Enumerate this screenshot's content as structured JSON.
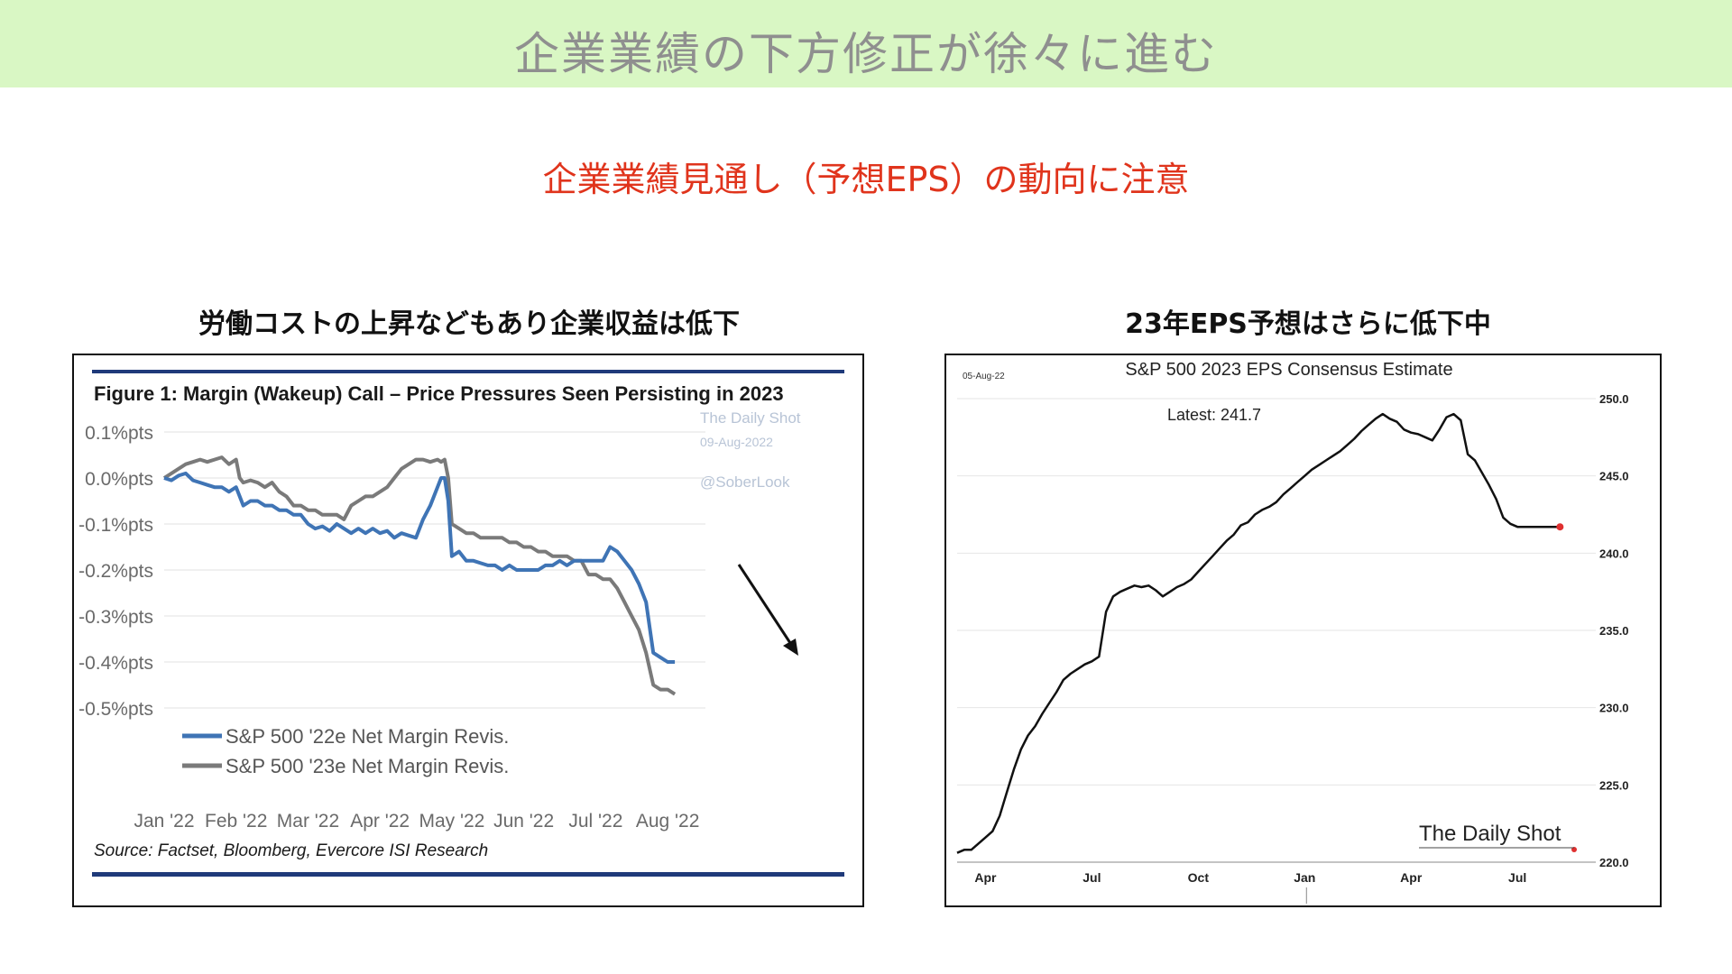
{
  "banner": {
    "title": "企業業績の下方修正が徐々に進む"
  },
  "subtitle": "企業業績見通し（予想EPS）の動向に注意",
  "left_panel": {
    "heading": "労働コストの上昇などもあり企業収益は低下"
  },
  "right_panel": {
    "heading": "23年EPS予想はさらに低下中"
  },
  "colors": {
    "banner_bg": "#d9f7c4",
    "subtitle": "#e0341c",
    "blue_series": "#3f74b5",
    "grey_series": "#7a7a7a",
    "navy_rule": "#1f3a7a",
    "latest_dot": "#e03030"
  },
  "chart_data": [
    {
      "type": "line",
      "title": "Figure 1: Margin (Wakeup) Call – Price Pressures Seen Persisting in 2023",
      "watermark": [
        "The Daily Shot",
        "09-Aug-2022",
        "@SoberLook"
      ],
      "source": "Source: Factset, Bloomberg, Evercore ISI Research",
      "ylim": [
        -0.5,
        0.1
      ],
      "yticks": [
        0.1,
        0.0,
        -0.1,
        -0.2,
        -0.3,
        -0.4,
        -0.5
      ],
      "ytick_labels": [
        "0.1%pts",
        "0.0%pts",
        "-0.1%pts",
        "-0.2%pts",
        "-0.3%pts",
        "-0.4%pts",
        "-0.5%pts"
      ],
      "xtick_labels": [
        "Jan '22",
        "Feb '22",
        "Mar '22",
        "Apr '22",
        "May '22",
        "Jun '22",
        "Jul '22",
        "Aug '22"
      ],
      "xlim": [
        0,
        7.4
      ],
      "series": [
        {
          "name": "S&P 500 '22e Net Margin Revis.",
          "x": [
            0,
            0.1,
            0.2,
            0.3,
            0.4,
            0.5,
            0.6,
            0.7,
            0.8,
            0.9,
            1.0,
            1.05,
            1.1,
            1.2,
            1.3,
            1.4,
            1.5,
            1.6,
            1.7,
            1.8,
            1.9,
            2.0,
            2.1,
            2.2,
            2.3,
            2.4,
            2.5,
            2.6,
            2.7,
            2.8,
            2.9,
            3.0,
            3.1,
            3.2,
            3.3,
            3.4,
            3.5,
            3.6,
            3.7,
            3.8,
            3.85,
            3.9,
            3.95,
            4.0,
            4.1,
            4.2,
            4.3,
            4.4,
            4.5,
            4.6,
            4.7,
            4.8,
            4.9,
            5.0,
            5.1,
            5.2,
            5.3,
            5.4,
            5.5,
            5.6,
            5.7,
            5.8,
            5.9,
            6.0,
            6.1,
            6.2,
            6.3,
            6.4,
            6.5,
            6.6,
            6.7,
            6.8,
            6.9,
            7.0,
            7.1
          ],
          "y": [
            0.0,
            -0.005,
            0.005,
            0.01,
            -0.005,
            -0.01,
            -0.015,
            -0.02,
            -0.02,
            -0.03,
            -0.02,
            -0.04,
            -0.06,
            -0.05,
            -0.05,
            -0.06,
            -0.06,
            -0.07,
            -0.07,
            -0.08,
            -0.08,
            -0.1,
            -0.11,
            -0.105,
            -0.115,
            -0.1,
            -0.11,
            -0.12,
            -0.11,
            -0.12,
            -0.11,
            -0.12,
            -0.115,
            -0.13,
            -0.12,
            -0.125,
            -0.13,
            -0.09,
            -0.06,
            -0.02,
            0.0,
            0.0,
            -0.05,
            -0.17,
            -0.16,
            -0.18,
            -0.18,
            -0.185,
            -0.19,
            -0.19,
            -0.2,
            -0.19,
            -0.2,
            -0.2,
            -0.2,
            -0.2,
            -0.19,
            -0.19,
            -0.18,
            -0.19,
            -0.18,
            -0.18,
            -0.18,
            -0.18,
            -0.18,
            -0.15,
            -0.16,
            -0.18,
            -0.2,
            -0.23,
            -0.27,
            -0.38,
            -0.39,
            -0.4,
            -0.4
          ]
        },
        {
          "name": "S&P 500 '23e Net Margin Revis.",
          "x": [
            0,
            0.1,
            0.2,
            0.3,
            0.4,
            0.5,
            0.6,
            0.7,
            0.8,
            0.9,
            1.0,
            1.05,
            1.1,
            1.2,
            1.3,
            1.4,
            1.5,
            1.6,
            1.7,
            1.8,
            1.9,
            2.0,
            2.1,
            2.2,
            2.3,
            2.4,
            2.5,
            2.6,
            2.7,
            2.8,
            2.9,
            3.0,
            3.1,
            3.2,
            3.3,
            3.4,
            3.5,
            3.6,
            3.7,
            3.8,
            3.85,
            3.9,
            3.95,
            4.0,
            4.1,
            4.2,
            4.3,
            4.4,
            4.5,
            4.6,
            4.7,
            4.8,
            4.9,
            5.0,
            5.1,
            5.2,
            5.3,
            5.4,
            5.5,
            5.6,
            5.7,
            5.8,
            5.9,
            6.0,
            6.1,
            6.2,
            6.3,
            6.4,
            6.5,
            6.6,
            6.7,
            6.8,
            6.9,
            7.0,
            7.1
          ],
          "y": [
            0.0,
            0.01,
            0.02,
            0.03,
            0.035,
            0.04,
            0.035,
            0.04,
            0.045,
            0.03,
            0.04,
            0.0,
            -0.01,
            -0.005,
            -0.01,
            -0.02,
            -0.01,
            -0.03,
            -0.04,
            -0.06,
            -0.06,
            -0.07,
            -0.07,
            -0.08,
            -0.08,
            -0.08,
            -0.09,
            -0.06,
            -0.05,
            -0.04,
            -0.04,
            -0.03,
            -0.02,
            0.0,
            0.02,
            0.03,
            0.04,
            0.04,
            0.035,
            0.04,
            0.035,
            0.04,
            0.0,
            -0.1,
            -0.11,
            -0.12,
            -0.12,
            -0.13,
            -0.13,
            -0.13,
            -0.13,
            -0.14,
            -0.14,
            -0.15,
            -0.15,
            -0.16,
            -0.16,
            -0.17,
            -0.17,
            -0.17,
            -0.18,
            -0.18,
            -0.21,
            -0.21,
            -0.22,
            -0.22,
            -0.24,
            -0.27,
            -0.3,
            -0.33,
            -0.38,
            -0.45,
            -0.46,
            -0.46,
            -0.47
          ]
        }
      ],
      "legend_position": "bottom-left",
      "annotation": "downward-arrow"
    },
    {
      "type": "line",
      "title": "S&P 500 2023 EPS Consensus Estimate",
      "date_label": "05-Aug-22",
      "latest_label": "Latest:  241.7",
      "brand": "The Daily Shot",
      "ylim": [
        220,
        250
      ],
      "yticks": [
        250,
        245,
        240,
        235,
        230,
        225,
        220
      ],
      "ytick_labels": [
        "250.0",
        "245.0",
        "240.0",
        "235.0",
        "230.0",
        "225.0",
        "220.0"
      ],
      "y_axis_side": "right",
      "xtick_labels": [
        "Apr",
        "Jul",
        "Oct",
        "Jan",
        "Apr",
        "Jul"
      ],
      "xlim": [
        0,
        17.5
      ],
      "xtick_positions": [
        0.8,
        3.8,
        6.8,
        9.8,
        12.8,
        15.8
      ],
      "series": [
        {
          "x": [
            0,
            0.2,
            0.4,
            0.6,
            0.8,
            1.0,
            1.2,
            1.4,
            1.6,
            1.8,
            2.0,
            2.2,
            2.4,
            2.6,
            2.8,
            3.0,
            3.2,
            3.4,
            3.6,
            3.8,
            4.0,
            4.2,
            4.4,
            4.6,
            4.8,
            5.0,
            5.2,
            5.4,
            5.6,
            5.8,
            6.0,
            6.2,
            6.4,
            6.6,
            6.8,
            7.0,
            7.2,
            7.4,
            7.6,
            7.8,
            8.0,
            8.2,
            8.4,
            8.6,
            8.8,
            9.0,
            9.2,
            9.4,
            9.6,
            9.8,
            10.0,
            10.2,
            10.4,
            10.6,
            10.8,
            11.0,
            11.2,
            11.4,
            11.6,
            11.8,
            12.0,
            12.2,
            12.4,
            12.6,
            12.8,
            13.0,
            13.2,
            13.4,
            13.6,
            13.8,
            14.0,
            14.2,
            14.4,
            14.6,
            14.8,
            15.0,
            15.2,
            15.4,
            15.6,
            15.8,
            16.0,
            16.2,
            16.4,
            16.6,
            16.8,
            17.0
          ],
          "y": [
            220.6,
            220.8,
            220.8,
            221.2,
            221.6,
            222.0,
            223.0,
            224.5,
            226.0,
            227.3,
            228.2,
            228.8,
            229.6,
            230.3,
            231.0,
            231.8,
            232.2,
            232.5,
            232.8,
            233.0,
            233.3,
            236.2,
            237.2,
            237.5,
            237.7,
            237.9,
            237.8,
            237.9,
            237.6,
            237.2,
            237.5,
            237.8,
            238.0,
            238.3,
            238.8,
            239.3,
            239.8,
            240.3,
            240.8,
            241.2,
            241.8,
            242.0,
            242.5,
            242.8,
            243.0,
            243.3,
            243.8,
            244.2,
            244.6,
            245.0,
            245.4,
            245.7,
            246.0,
            246.3,
            246.6,
            247.0,
            247.4,
            247.9,
            248.3,
            248.7,
            249.0,
            248.7,
            248.5,
            248.0,
            247.8,
            247.7,
            247.5,
            247.3,
            248.0,
            248.8,
            249.0,
            248.6,
            246.4,
            246.0,
            245.2,
            244.4,
            243.5,
            242.3,
            241.9,
            241.7,
            241.7,
            241.7,
            241.7,
            241.7,
            241.7,
            241.7
          ]
        }
      ],
      "latest_marker": {
        "x": 17.0,
        "y": 241.7
      }
    }
  ]
}
